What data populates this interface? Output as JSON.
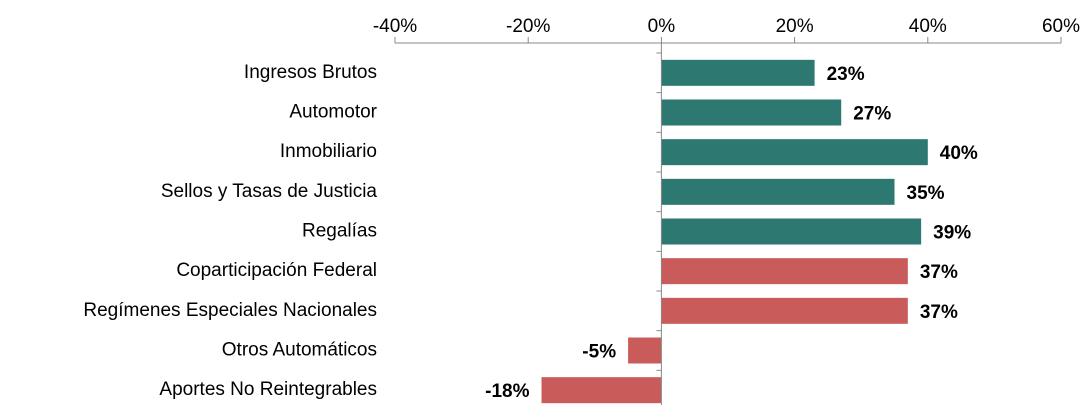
{
  "chart_data": {
    "type": "bar",
    "orientation": "horizontal",
    "categories": [
      "Ingresos Brutos",
      "Automotor",
      "Inmobiliario",
      "Sellos y Tasas de Justicia",
      "Regalías",
      "Coparticipación Federal",
      "Regímenes Especiales Nacionales",
      "Otros Automáticos",
      "Aportes No Reintegrables"
    ],
    "values": [
      23,
      27,
      40,
      35,
      39,
      37,
      37,
      -5,
      -18
    ],
    "value_labels": [
      "23%",
      "27%",
      "40%",
      "35%",
      "39%",
      "37%",
      "37%",
      "-5%",
      "-18%"
    ],
    "colors": [
      "#2e7872",
      "#2e7872",
      "#2e7872",
      "#2e7872",
      "#2e7872",
      "#c95c5a",
      "#c95c5a",
      "#c95c5a",
      "#c95c5a"
    ],
    "xlim": [
      -40,
      60
    ],
    "xticks": [
      {
        "value": -40,
        "label": "-40%"
      },
      {
        "value": -20,
        "label": "-20%"
      },
      {
        "value": 0,
        "label": "0%"
      },
      {
        "value": 20,
        "label": "20%"
      },
      {
        "value": 40,
        "label": "40%"
      },
      {
        "value": 60,
        "label": "60%"
      }
    ],
    "grid": false
  }
}
